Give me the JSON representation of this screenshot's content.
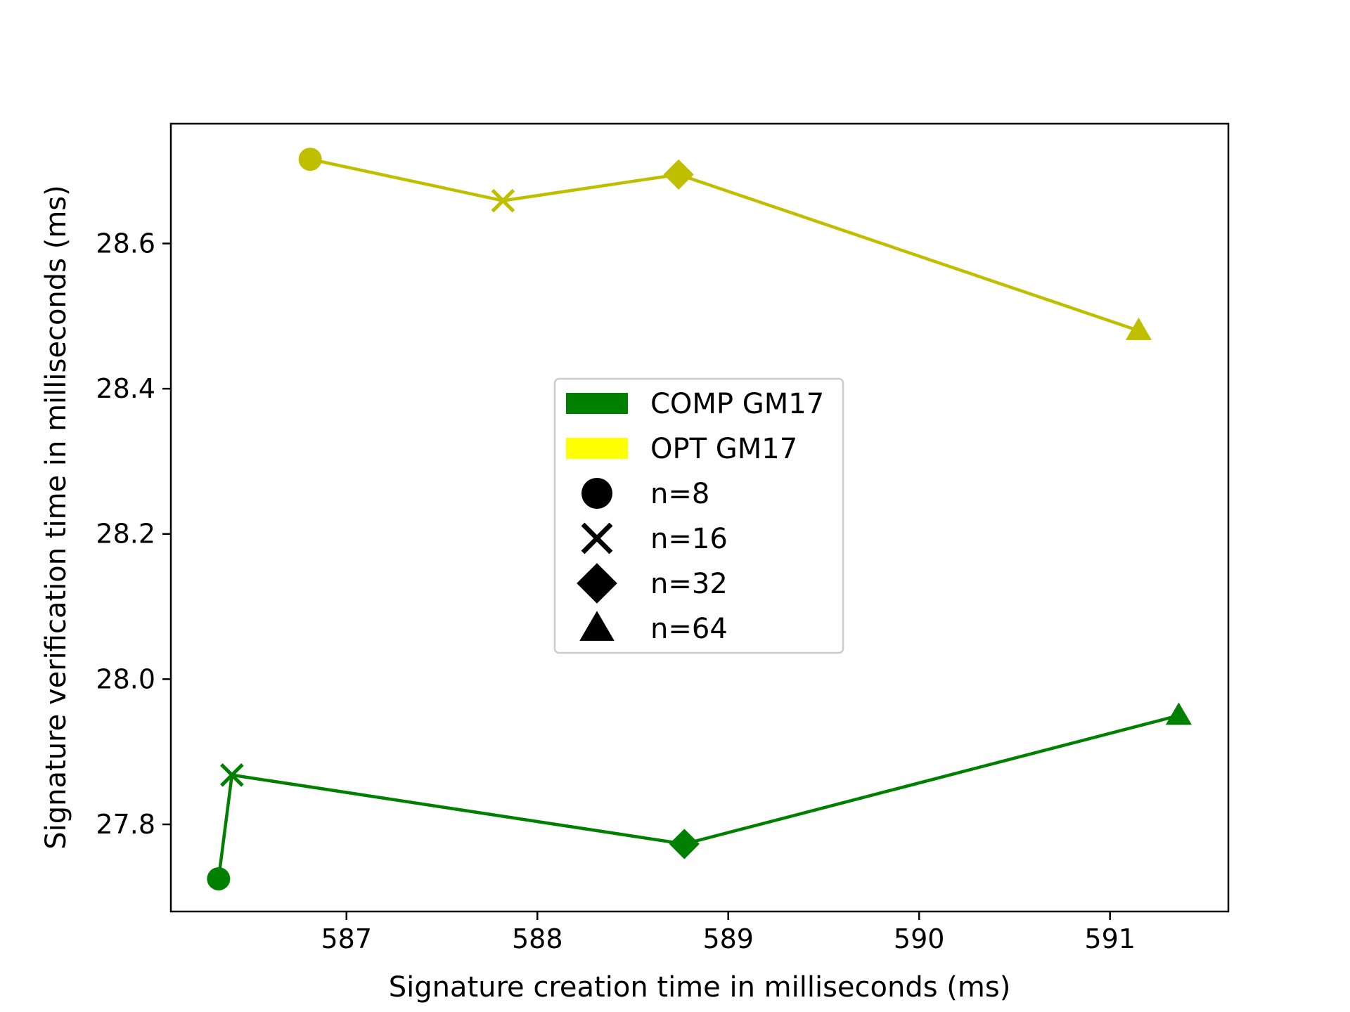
{
  "chart_data": {
    "type": "line",
    "xlabel": "Signature creation time in milliseconds (ms)",
    "ylabel": "Signature verification time in milliseconds (ms)",
    "xlim": [
      586.08,
      591.62
    ],
    "ylim": [
      27.68,
      28.765
    ],
    "xticks": [
      587,
      588,
      589,
      590,
      591
    ],
    "yticks": [
      27.8,
      28.0,
      28.2,
      28.4,
      28.6
    ],
    "xtick_labels": [
      "587",
      "588",
      "589",
      "590",
      "591"
    ],
    "ytick_labels": [
      "27.8",
      "28.0",
      "28.2",
      "28.4",
      "28.6"
    ],
    "grid": false,
    "legend_position": "center",
    "series": [
      {
        "name": "COMP GM17",
        "color": "#008000",
        "points": [
          {
            "x": 586.33,
            "y": 27.725,
            "marker": "circle"
          },
          {
            "x": 586.4,
            "y": 27.868,
            "marker": "x"
          },
          {
            "x": 588.77,
            "y": 27.773,
            "marker": "diamond"
          },
          {
            "x": 591.36,
            "y": 27.95,
            "marker": "triangle"
          }
        ]
      },
      {
        "name": "OPT GM17",
        "color": "#bfbf00",
        "legend_color": "#ffff00",
        "points": [
          {
            "x": 586.81,
            "y": 28.716,
            "marker": "circle"
          },
          {
            "x": 587.82,
            "y": 28.659,
            "marker": "x"
          },
          {
            "x": 588.74,
            "y": 28.695,
            "marker": "diamond"
          },
          {
            "x": 591.15,
            "y": 28.48,
            "marker": "triangle"
          }
        ]
      }
    ],
    "marker_legend": [
      {
        "label": "n=8",
        "marker": "circle"
      },
      {
        "label": "n=16",
        "marker": "x"
      },
      {
        "label": "n=32",
        "marker": "diamond"
      },
      {
        "label": "n=64",
        "marker": "triangle"
      }
    ]
  }
}
